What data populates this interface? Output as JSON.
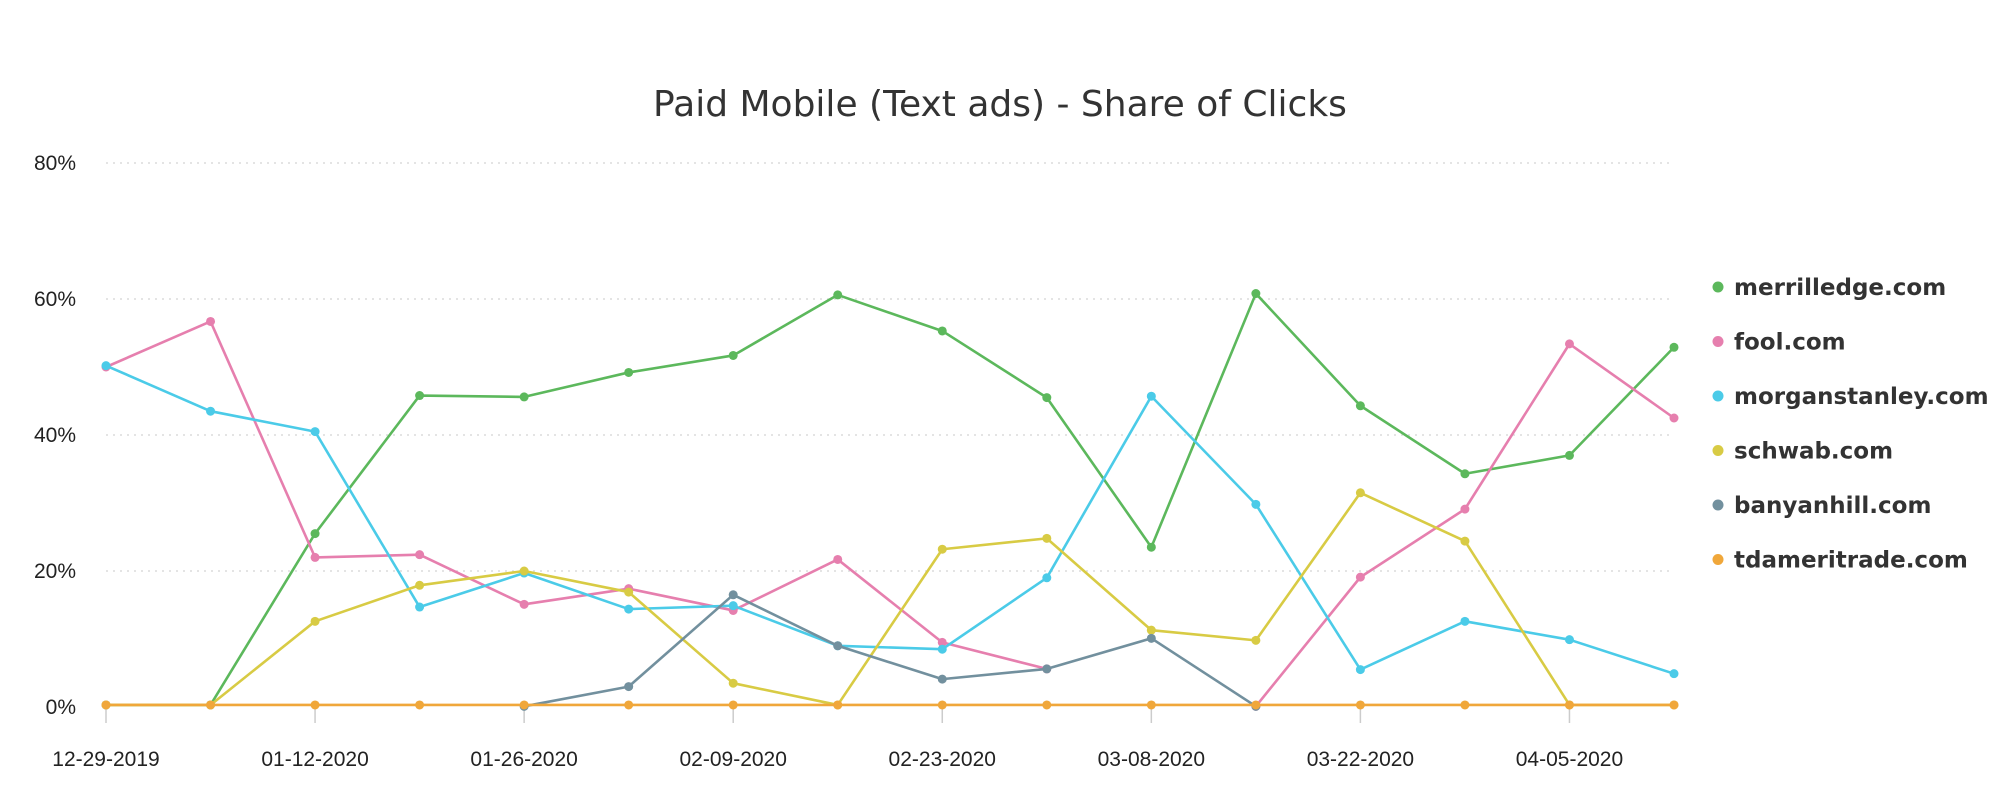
{
  "chart_data": {
    "type": "line",
    "title": "Paid Mobile (Text ads) - Share of Clicks",
    "xlabel": "",
    "ylabel": "",
    "ylim": [
      0,
      80
    ],
    "yticks": [
      "0%",
      "20%",
      "40%",
      "60%",
      "80%"
    ],
    "ytick_values": [
      0,
      20,
      40,
      60,
      80
    ],
    "grid": true,
    "legend": "right",
    "x": [
      "12-29-2019",
      "01-05-2020",
      "01-12-2020",
      "01-19-2020",
      "01-26-2020",
      "02-02-2020",
      "02-09-2020",
      "02-16-2020",
      "02-23-2020",
      "03-01-2020",
      "03-08-2020",
      "03-15-2020",
      "03-22-2020",
      "03-29-2020",
      "04-05-2020",
      "04-12-2020"
    ],
    "xtick_labels": [
      "12-29-2019",
      "01-12-2020",
      "01-26-2020",
      "02-09-2020",
      "02-23-2020",
      "03-08-2020",
      "03-22-2020",
      "04-05-2020"
    ],
    "series": [
      {
        "name": "merrilledge.com",
        "color": "#5cb85c",
        "values": [
          0.3,
          0.3,
          25.5,
          45.8,
          45.6,
          49.2,
          51.7,
          60.6,
          55.3,
          45.5,
          23.5,
          60.8,
          44.3,
          34.3,
          37.0,
          52.9
        ]
      },
      {
        "name": "fool.com",
        "color": "#e67fae",
        "values": [
          50.0,
          56.7,
          22.0,
          22.4,
          15.1,
          17.4,
          14.2,
          21.7,
          9.5,
          5.6,
          null,
          0.1,
          19.1,
          29.1,
          53.4,
          42.5
        ]
      },
      {
        "name": "morganstanley.com",
        "color": "#4bcbe8",
        "values": [
          50.2,
          43.5,
          40.5,
          14.7,
          19.7,
          14.4,
          14.9,
          9.0,
          8.5,
          19.0,
          45.7,
          29.8,
          5.5,
          12.6,
          9.9,
          4.9
        ]
      },
      {
        "name": "schwab.com",
        "color": "#d8cb44",
        "values": [
          0.3,
          0.3,
          12.6,
          17.9,
          20.0,
          16.9,
          3.5,
          0.3,
          23.2,
          24.8,
          11.3,
          9.8,
          31.5,
          24.4,
          0.3,
          0.3
        ]
      },
      {
        "name": "banyanhill.com",
        "color": "#72909e",
        "values": [
          null,
          null,
          null,
          null,
          0.1,
          3.0,
          16.5,
          9.0,
          4.1,
          5.6,
          10.1,
          0.1,
          null,
          null,
          null,
          null
        ]
      },
      {
        "name": "tdameritrade.com",
        "color": "#f0a73a",
        "values": [
          0.3,
          0.3,
          0.3,
          0.3,
          0.3,
          0.3,
          0.3,
          0.3,
          0.3,
          0.3,
          0.3,
          0.3,
          0.3,
          0.3,
          0.3,
          0.3
        ]
      }
    ]
  }
}
